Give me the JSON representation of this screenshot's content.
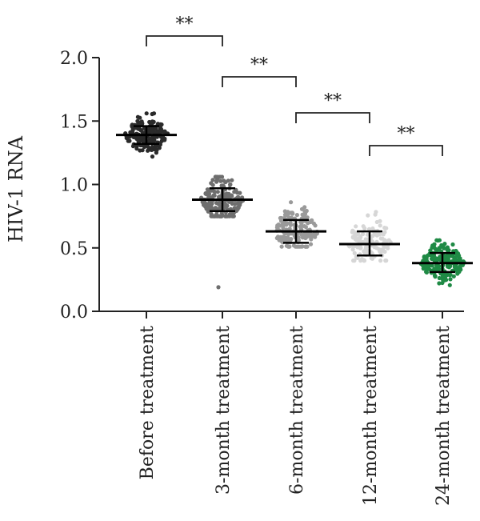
{
  "chart_data": {
    "type": "scatter",
    "title": "",
    "xlabel": "",
    "ylabel": "HIV-1 RNA",
    "ylim": [
      0.0,
      2.0
    ],
    "yticks": [
      "0.0",
      "0.5",
      "1.0",
      "1.5",
      "2.0"
    ],
    "grid": false,
    "legend": "none",
    "categories": [
      "Before treatment",
      "3-month treatment",
      "6-month treatment",
      "12-month treatment",
      "24-month treatment"
    ],
    "groups": [
      {
        "category": "Before treatment",
        "color": "#2a2a2a",
        "mean": 1.39,
        "sd_low": 1.32,
        "sd_high": 1.46,
        "min": 1.2,
        "max": 1.56,
        "n": 200,
        "outliers": []
      },
      {
        "category": "3-month treatment",
        "color": "#6e6e6e",
        "mean": 0.88,
        "sd_low": 0.79,
        "sd_high": 0.97,
        "min": 0.75,
        "max": 1.06,
        "n": 190,
        "outliers": [
          0.19
        ]
      },
      {
        "category": "6-month treatment",
        "color": "#9a9a9a",
        "mean": 0.63,
        "sd_low": 0.54,
        "sd_high": 0.72,
        "min": 0.51,
        "max": 0.86,
        "n": 170,
        "outliers": []
      },
      {
        "category": "12-month treatment",
        "color": "#d6d6d6",
        "mean": 0.53,
        "sd_low": 0.44,
        "sd_high": 0.63,
        "min": 0.4,
        "max": 0.86,
        "n": 130,
        "outliers": []
      },
      {
        "category": "24-month treatment",
        "color": "#1f8a45",
        "mean": 0.38,
        "sd_low": 0.31,
        "sd_high": 0.46,
        "min": 0.2,
        "max": 0.56,
        "n": 200,
        "outliers": []
      }
    ],
    "comparisons": [
      {
        "from": 0,
        "to": 1,
        "label": "**"
      },
      {
        "from": 1,
        "to": 2,
        "label": "**"
      },
      {
        "from": 2,
        "to": 3,
        "label": "**"
      },
      {
        "from": 3,
        "to": 4,
        "label": "**"
      }
    ]
  }
}
